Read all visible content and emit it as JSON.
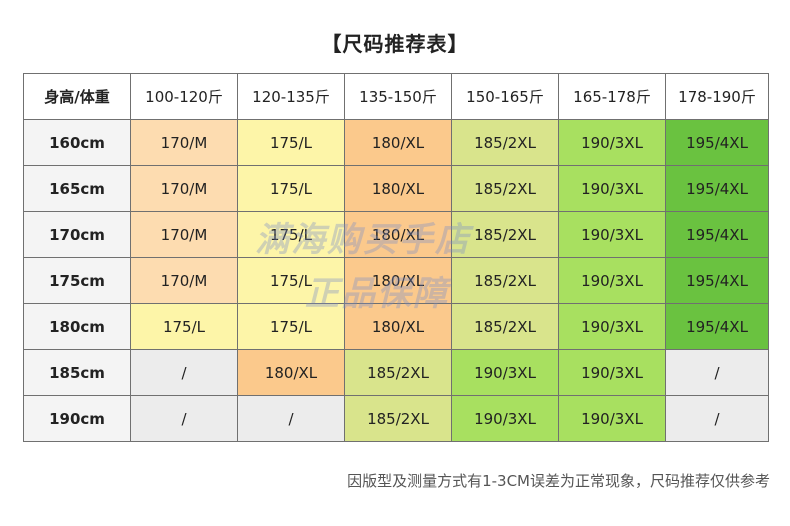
{
  "title": "【尺码推荐表】",
  "table": {
    "corner": "身高/体重",
    "columns": [
      "100-120斤",
      "120-135斤",
      "135-150斤",
      "150-165斤",
      "165-178斤",
      "178-190斤"
    ],
    "rows": [
      {
        "height": "160cm",
        "cells": [
          "170/M",
          "175/L",
          "180/XL",
          "185/2XL",
          "190/3XL",
          "195/4XL"
        ]
      },
      {
        "height": "165cm",
        "cells": [
          "170/M",
          "175/L",
          "180/XL",
          "185/2XL",
          "190/3XL",
          "195/4XL"
        ]
      },
      {
        "height": "170cm",
        "cells": [
          "170/M",
          "175/L",
          "180/XL",
          "185/2XL",
          "190/3XL",
          "195/4XL"
        ]
      },
      {
        "height": "175cm",
        "cells": [
          "170/M",
          "175/L",
          "180/XL",
          "185/2XL",
          "190/3XL",
          "195/4XL"
        ]
      },
      {
        "height": "180cm",
        "cells": [
          "175/L",
          "175/L",
          "180/XL",
          "185/2XL",
          "190/3XL",
          "195/4XL"
        ]
      },
      {
        "height": "185cm",
        "cells": [
          "/",
          "180/XL",
          "185/2XL",
          "190/3XL",
          "190/3XL",
          "/"
        ]
      },
      {
        "height": "190cm",
        "cells": [
          "/",
          "/",
          "185/2XL",
          "190/3XL",
          "190/3XL",
          "/"
        ]
      }
    ]
  },
  "size_colors": {
    "170/M": "#fddcb0",
    "175/L": "#fdf5a8",
    "180/XL": "#fbc98c",
    "185/2XL": "#d9e48c",
    "190/3XL": "#a8e060",
    "195/4XL": "#6ac240",
    "/": "#ececec"
  },
  "watermark": {
    "line1": "满海购买手店",
    "line2": "正品保障"
  },
  "note": "因版型及测量方式有1-3CM误差为正常现象，尺码推荐仅供参考"
}
